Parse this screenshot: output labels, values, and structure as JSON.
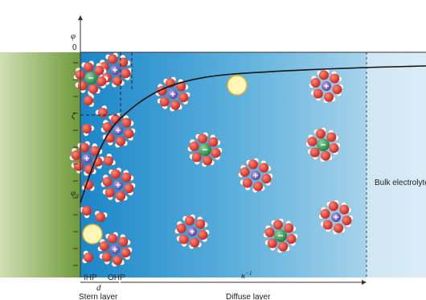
{
  "axis": {
    "y_label": "φ",
    "zero": "0",
    "zeta": "ζ",
    "phi0": {
      "symbol": "φ",
      "subscript": "0"
    }
  },
  "planes": {
    "ihp": "IHP",
    "ohp": "OHP"
  },
  "dimensions": {
    "d": "d",
    "kappa": {
      "symbol": "κ",
      "superscript": "−1"
    }
  },
  "regions": {
    "stern": "Stern layer",
    "diffuse": "Diffuse layer",
    "bulk": "Bulk electrolyte"
  }
}
